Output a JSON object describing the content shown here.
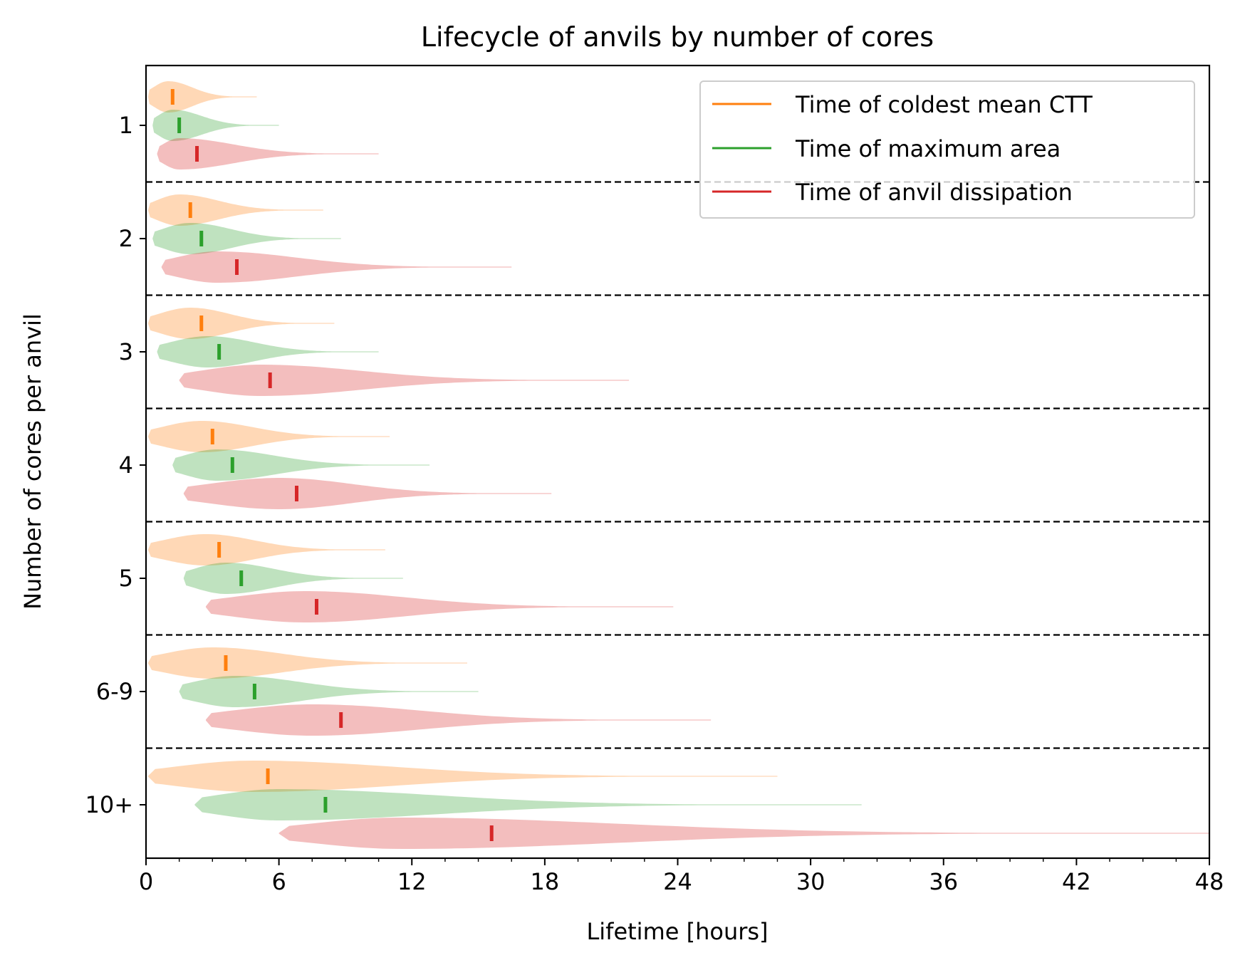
{
  "chart_data": {
    "type": "violin",
    "title": "Lifecycle of anvils by number of cores",
    "xlabel": "Lifetime [hours]",
    "ylabel": "Number of cores per anvil",
    "xlim": [
      0,
      48
    ],
    "x_ticks": [
      0,
      6,
      12,
      18,
      24,
      30,
      36,
      42,
      48
    ],
    "orientation": "horizontal",
    "grid": false,
    "legend_position": "top-right",
    "categories": [
      "1",
      "2",
      "3",
      "4",
      "5",
      "6-9",
      "10+"
    ],
    "series": [
      {
        "name": "Time of coldest mean CTT",
        "color": "#ff7f0e",
        "medians": [
          1.2,
          2.0,
          2.5,
          3.0,
          3.3,
          3.6,
          5.5
        ],
        "ranges": [
          [
            0.1,
            5.0
          ],
          [
            0.1,
            8.0
          ],
          [
            0.1,
            8.5
          ],
          [
            0.1,
            11.0
          ],
          [
            0.1,
            10.8
          ],
          [
            0.1,
            14.5
          ],
          [
            0.1,
            28.5
          ]
        ],
        "modes": [
          1.0,
          1.5,
          2.0,
          2.5,
          2.7,
          3.0,
          4.8
        ]
      },
      {
        "name": "Time of maximum area",
        "color": "#2ca02c",
        "medians": [
          1.5,
          2.5,
          3.3,
          3.9,
          4.3,
          4.9,
          8.1
        ],
        "ranges": [
          [
            0.3,
            6.0
          ],
          [
            0.3,
            8.8
          ],
          [
            0.5,
            10.5
          ],
          [
            1.2,
            12.8
          ],
          [
            1.7,
            11.6
          ],
          [
            1.5,
            15.0
          ],
          [
            2.2,
            32.3
          ]
        ],
        "modes": [
          1.2,
          2.0,
          2.8,
          3.2,
          3.6,
          4.0,
          6.0
        ]
      },
      {
        "name": "Time of anvil dissipation",
        "color": "#d62728",
        "medians": [
          2.3,
          4.1,
          5.6,
          6.8,
          7.7,
          8.8,
          15.6
        ],
        "ranges": [
          [
            0.5,
            10.5
          ],
          [
            0.7,
            16.5
          ],
          [
            1.5,
            21.8
          ],
          [
            1.7,
            18.3
          ],
          [
            2.7,
            23.8
          ],
          [
            2.7,
            25.5
          ],
          [
            6.0,
            48.0
          ]
        ],
        "modes": [
          1.5,
          3.2,
          5.2,
          6.0,
          7.2,
          7.5,
          11.5
        ]
      }
    ]
  }
}
